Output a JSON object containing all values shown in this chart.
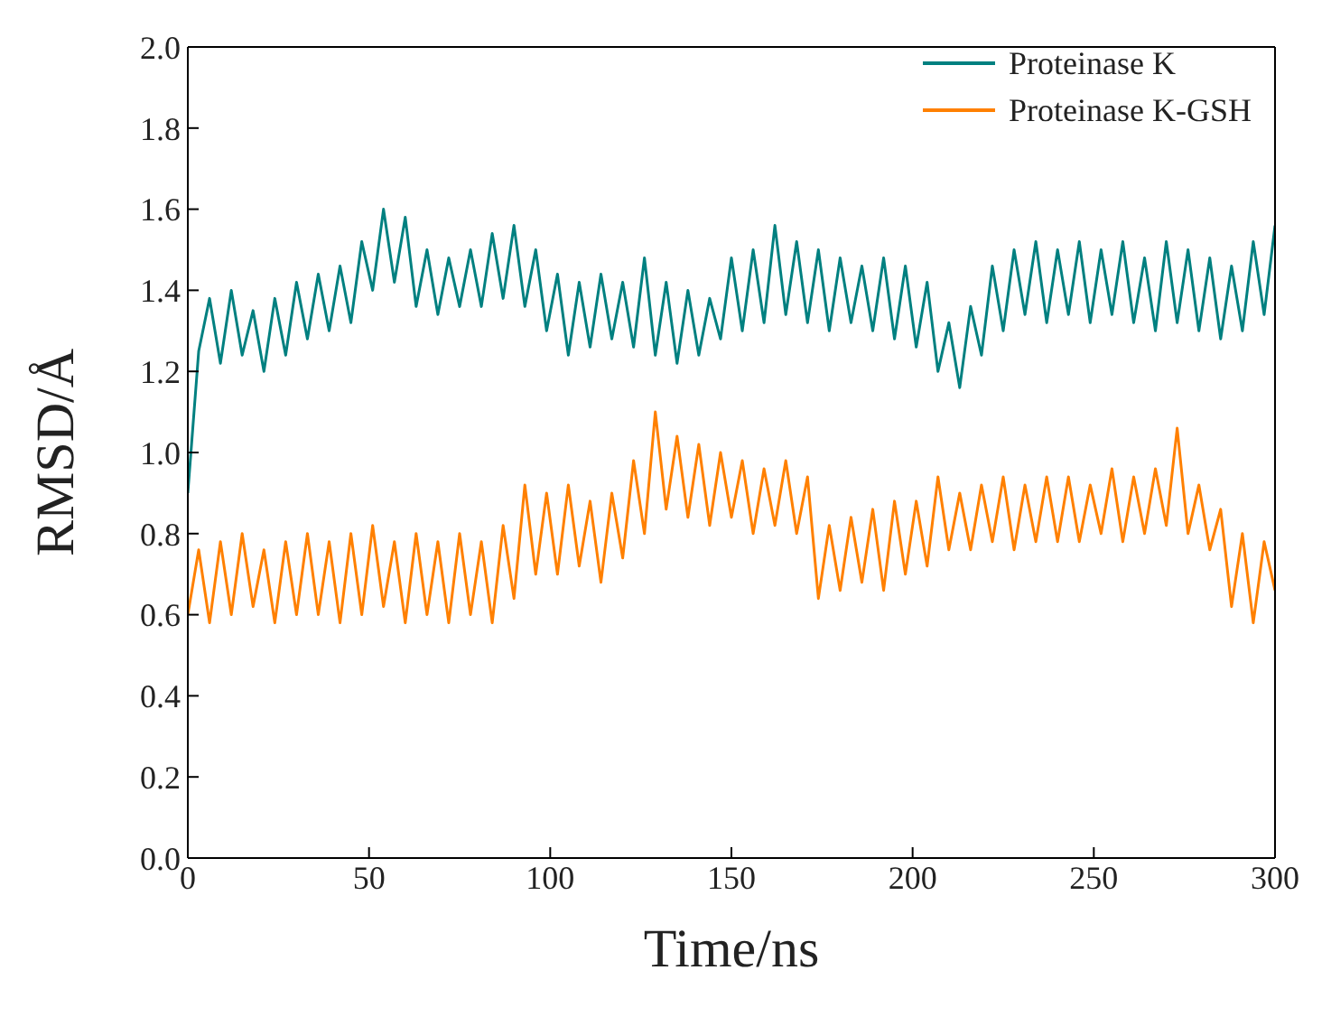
{
  "chart_data": {
    "type": "line",
    "xlabel": "Time/ns",
    "ylabel": "RMSD/Å",
    "xlim": [
      0,
      300
    ],
    "ylim": [
      0,
      2
    ],
    "xticks": [
      0,
      50,
      100,
      150,
      200,
      250,
      300
    ],
    "yticks": [
      {
        "value": 0,
        "label": "0.0"
      },
      0.2,
      0.4,
      0.6,
      0.8,
      {
        "value": 1,
        "label": "1.0"
      },
      1.2,
      1.4,
      1.6,
      1.8,
      {
        "value": 2,
        "label": "2.0"
      }
    ],
    "x": [
      0,
      3,
      6,
      9,
      12,
      15,
      18,
      21,
      24,
      27,
      30,
      33,
      36,
      39,
      42,
      45,
      48,
      51,
      54,
      57,
      60,
      63,
      66,
      69,
      72,
      75,
      78,
      81,
      84,
      87,
      90,
      93,
      96,
      99,
      102,
      105,
      108,
      111,
      114,
      117,
      120,
      123,
      126,
      129,
      132,
      135,
      138,
      141,
      144,
      147,
      150,
      153,
      156,
      159,
      162,
      165,
      168,
      171,
      174,
      177,
      180,
      183,
      186,
      189,
      192,
      195,
      198,
      201,
      204,
      207,
      210,
      213,
      216,
      219,
      222,
      225,
      228,
      231,
      234,
      237,
      240,
      243,
      246,
      249,
      252,
      255,
      258,
      261,
      264,
      267,
      270,
      273,
      276,
      279,
      282,
      285,
      288,
      291,
      294,
      297,
      300
    ],
    "legend": "top right",
    "grid": false,
    "marker": "none",
    "line_style": "solid",
    "series": [
      {
        "name": "Proteinase K",
        "color": "#008080",
        "values": [
          0.9,
          1.25,
          1.38,
          1.22,
          1.4,
          1.24,
          1.35,
          1.2,
          1.38,
          1.24,
          1.42,
          1.28,
          1.44,
          1.3,
          1.46,
          1.32,
          1.52,
          1.4,
          1.6,
          1.42,
          1.58,
          1.36,
          1.5,
          1.34,
          1.48,
          1.36,
          1.5,
          1.36,
          1.54,
          1.38,
          1.56,
          1.36,
          1.5,
          1.3,
          1.44,
          1.24,
          1.42,
          1.26,
          1.44,
          1.28,
          1.42,
          1.26,
          1.48,
          1.24,
          1.42,
          1.22,
          1.4,
          1.24,
          1.38,
          1.28,
          1.48,
          1.3,
          1.5,
          1.32,
          1.56,
          1.34,
          1.52,
          1.32,
          1.5,
          1.3,
          1.48,
          1.32,
          1.46,
          1.3,
          1.48,
          1.28,
          1.46,
          1.26,
          1.42,
          1.2,
          1.32,
          1.16,
          1.36,
          1.24,
          1.46,
          1.3,
          1.5,
          1.34,
          1.52,
          1.32,
          1.5,
          1.34,
          1.52,
          1.32,
          1.5,
          1.34,
          1.52,
          1.32,
          1.48,
          1.3,
          1.52,
          1.32,
          1.5,
          1.3,
          1.48,
          1.28,
          1.46,
          1.3,
          1.52,
          1.34,
          1.56
        ]
      },
      {
        "name": "Proteinase K-GSH",
        "color": "#ff8000",
        "values": [
          0.6,
          0.76,
          0.58,
          0.78,
          0.6,
          0.8,
          0.62,
          0.76,
          0.58,
          0.78,
          0.6,
          0.8,
          0.6,
          0.78,
          0.58,
          0.8,
          0.6,
          0.82,
          0.62,
          0.78,
          0.58,
          0.8,
          0.6,
          0.78,
          0.58,
          0.8,
          0.6,
          0.78,
          0.58,
          0.82,
          0.64,
          0.92,
          0.7,
          0.9,
          0.7,
          0.92,
          0.72,
          0.88,
          0.68,
          0.9,
          0.74,
          0.98,
          0.8,
          1.1,
          0.86,
          1.04,
          0.84,
          1.02,
          0.82,
          1.0,
          0.84,
          0.98,
          0.8,
          0.96,
          0.82,
          0.98,
          0.8,
          0.94,
          0.64,
          0.82,
          0.66,
          0.84,
          0.68,
          0.86,
          0.66,
          0.88,
          0.7,
          0.88,
          0.72,
          0.94,
          0.76,
          0.9,
          0.76,
          0.92,
          0.78,
          0.94,
          0.76,
          0.92,
          0.78,
          0.94,
          0.78,
          0.94,
          0.78,
          0.92,
          0.8,
          0.96,
          0.78,
          0.94,
          0.8,
          0.96,
          0.82,
          1.06,
          0.8,
          0.92,
          0.76,
          0.86,
          0.62,
          0.8,
          0.58,
          0.78,
          0.66
        ]
      }
    ]
  }
}
